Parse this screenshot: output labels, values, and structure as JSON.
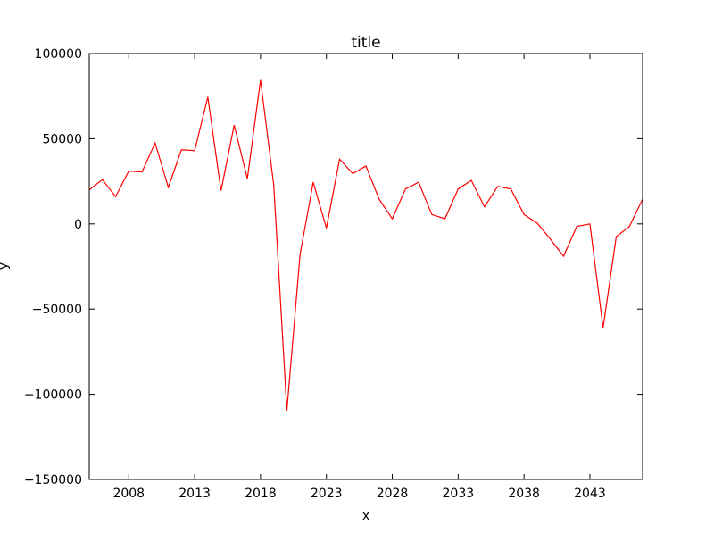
{
  "chart_data": {
    "type": "line",
    "title": "title",
    "xlabel": "x",
    "ylabel": "y",
    "xlim": [
      2005,
      2047
    ],
    "ylim": [
      -150000,
      100000
    ],
    "xticks": [
      2008,
      2013,
      2018,
      2023,
      2028,
      2033,
      2038,
      2043
    ],
    "yticks": [
      100000,
      50000,
      0,
      -50000,
      -100000,
      -150000
    ],
    "ytick_labels": [
      "100000",
      "50000",
      "0",
      "−50000",
      "−100000",
      "−150000"
    ],
    "grid": false,
    "series": [
      {
        "color": "#ff0000",
        "x": [
          2005,
          2006,
          2007,
          2008,
          2009,
          2010,
          2011,
          2012,
          2013,
          2014,
          2015,
          2016,
          2017,
          2018,
          2019,
          2020,
          2021,
          2022,
          2023,
          2024,
          2025,
          2026,
          2027,
          2028,
          2029,
          2030,
          2031,
          2032,
          2033,
          2034,
          2035,
          2036,
          2037,
          2038,
          2039,
          2040,
          2041,
          2042,
          2043,
          2044,
          2045,
          2046,
          2047
        ],
        "y": [
          20000,
          26000,
          16000,
          31000,
          30500,
          47500,
          21500,
          43500,
          43000,
          74500,
          19500,
          58000,
          26500,
          84500,
          23000,
          -109500,
          -18000,
          24500,
          -2500,
          38000,
          29500,
          34000,
          14500,
          3000,
          20500,
          24500,
          5500,
          3000,
          20500,
          25500,
          10000,
          22000,
          20500,
          5500,
          500,
          -9000,
          -19000,
          -1500,
          0,
          -61000,
          -7500,
          -1500,
          14500
        ]
      }
    ]
  }
}
